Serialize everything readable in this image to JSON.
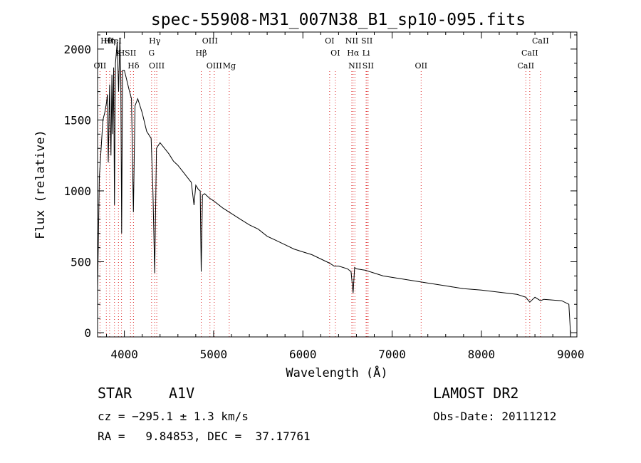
{
  "chart_data": {
    "type": "line",
    "title": "spec-55908-M31_007N38_B1_sp10-095.fits",
    "xlabel": "Wavelength (Å)",
    "ylabel": "Flux (relative)",
    "xlim": [
      3700,
      9070
    ],
    "ylim": [
      -30,
      2120
    ],
    "xticks": [
      4000,
      5000,
      6000,
      7000,
      8000,
      9000
    ],
    "yticks": [
      0,
      500,
      1000,
      1500,
      2000
    ],
    "grid": false,
    "series": [
      {
        "x": [
          3700,
          3720,
          3740,
          3760,
          3780,
          3800,
          3810,
          3820,
          3835,
          3850,
          3860,
          3870,
          3880,
          3889,
          3900,
          3920,
          3935,
          3950,
          3960,
          3970,
          3980,
          4000,
          4020,
          4050,
          4080,
          4101,
          4120,
          4150,
          4200,
          4250,
          4300,
          4320,
          4340,
          4360,
          4400,
          4450,
          4500,
          4550,
          4600,
          4650,
          4700,
          4750,
          4780,
          4800,
          4830,
          4850,
          4861,
          4875,
          4900,
          4950,
          5000,
          5100,
          5200,
          5300,
          5400,
          5500,
          5600,
          5700,
          5800,
          5900,
          6000,
          6100,
          6200,
          6300,
          6350,
          6400,
          6500,
          6540,
          6563,
          6580,
          6600,
          6700,
          6800,
          6900,
          7000,
          7200,
          7400,
          7600,
          7800,
          8000,
          8200,
          8400,
          8498,
          8542,
          8600,
          8662,
          8700,
          8800,
          8900,
          8980,
          9000
        ],
        "y": [
          300,
          1100,
          1300,
          1500,
          1550,
          1620,
          1680,
          1200,
          1750,
          1250,
          1820,
          1400,
          1870,
          900,
          1900,
          2050,
          1700,
          2080,
          1800,
          700,
          1850,
          1850,
          1800,
          1720,
          1650,
          850,
          1600,
          1650,
          1550,
          1420,
          1370,
          1000,
          420,
          1300,
          1340,
          1300,
          1260,
          1210,
          1180,
          1140,
          1100,
          1060,
          900,
          1040,
          1010,
          1000,
          430,
          970,
          980,
          950,
          930,
          880,
          840,
          800,
          760,
          730,
          680,
          650,
          620,
          590,
          570,
          550,
          520,
          490,
          470,
          470,
          450,
          430,
          280,
          460,
          450,
          440,
          420,
          400,
          390,
          370,
          350,
          330,
          310,
          300,
          285,
          270,
          250,
          215,
          250,
          225,
          235,
          230,
          225,
          200,
          -20
        ]
      }
    ],
    "line_markers": {
      "labels": [
        "Hθ",
        "K",
        "Hδ",
        "HeI",
        "SII",
        "OII",
        "Hη",
        "H",
        "OIII",
        "Hγ",
        "G",
        "OIII",
        "OIII",
        "Hβ",
        "Mg",
        "OI",
        "OI",
        "NII",
        "SII",
        "Hα",
        "SII",
        "NII",
        "Li",
        "OII",
        "CaII",
        "CaII",
        "CaII"
      ],
      "wavelengths": [
        3798,
        3934,
        4102,
        3889,
        4069,
        3727,
        3835,
        3968,
        4363,
        4340,
        4305,
        5007,
        4959,
        4861,
        5175,
        6300,
        6364,
        6583,
        6717,
        6563,
        6731,
        6548,
        6708,
        7325,
        8662,
        8542,
        8498
      ]
    }
  },
  "info": {
    "object_class": "STAR",
    "subclass": "A1V",
    "survey": "LAMOST DR2",
    "cz_line": "cz = −295.1 ± 1.3 km/s",
    "obs_date_line": "Obs-Date: 20111212",
    "coords_line": "RA =   9.84853, DEC =  37.17761"
  }
}
